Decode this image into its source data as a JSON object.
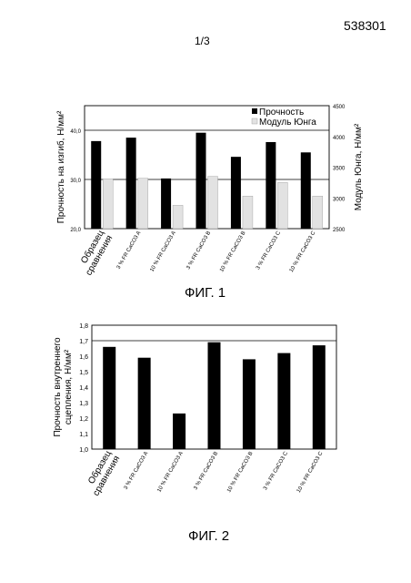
{
  "header": {
    "doc_number": "538301",
    "sheet": "1/3"
  },
  "figures": {
    "fig1_label": "ФИГ. 1",
    "fig2_label": "ФИГ. 2"
  },
  "chart_data": [
    {
      "type": "bar",
      "title": "",
      "categories": [
        "Образец сравнения",
        "3 % FR CaCO3 A",
        "10 % FR CaCO3 A",
        "3 % FR CaCO3 B",
        "10 % FR CaCO3 B",
        "3 % FR CaCO3 C",
        "10 % FR CaCO3 C"
      ],
      "ylabel": "Прочность на изгиб, Н/мм²",
      "y2label": "Модуль Юнга, Н/мм²",
      "ylim": [
        20,
        45
      ],
      "y2lim": [
        2500,
        4500
      ],
      "yticks": [
        "20,0",
        "30,0",
        "40,0"
      ],
      "y2ticks": [
        "2500",
        "3000",
        "3500",
        "4000",
        "4500"
      ],
      "grid": true,
      "legend_position": "top-right",
      "series": [
        {
          "name": "Прочность",
          "axis": "left",
          "color": "#000000",
          "values": [
            37.8,
            38.5,
            30.2,
            39.5,
            34.6,
            37.6,
            35.5
          ]
        },
        {
          "name": "Модуль Юнга",
          "axis": "right",
          "color": "#e2e2e2",
          "values": [
            3310,
            3320,
            2880,
            3350,
            3030,
            3250,
            3030
          ]
        }
      ]
    },
    {
      "type": "bar",
      "title": "",
      "categories": [
        "Образец сравнения",
        "3 % FR CaCO3 A",
        "10 % FR CaCO3 A",
        "3 % FR CaCO3 B",
        "10 % FR CaCO3 B",
        "3 % FR CaCO3 C",
        "10 % FR CaCO3 C"
      ],
      "ylabel": "Прочность внутреннего сцепления, Н/мм²",
      "ylim": [
        1.0,
        1.8
      ],
      "yticks": [
        "1,0",
        "1,1",
        "1,2",
        "1,3",
        "1,4",
        "1,5",
        "1,6",
        "1,7",
        "1,8"
      ],
      "grid": true,
      "series": [
        {
          "color": "#000000",
          "values": [
            1.66,
            1.59,
            1.23,
            1.69,
            1.58,
            1.62,
            1.67
          ]
        }
      ]
    }
  ]
}
